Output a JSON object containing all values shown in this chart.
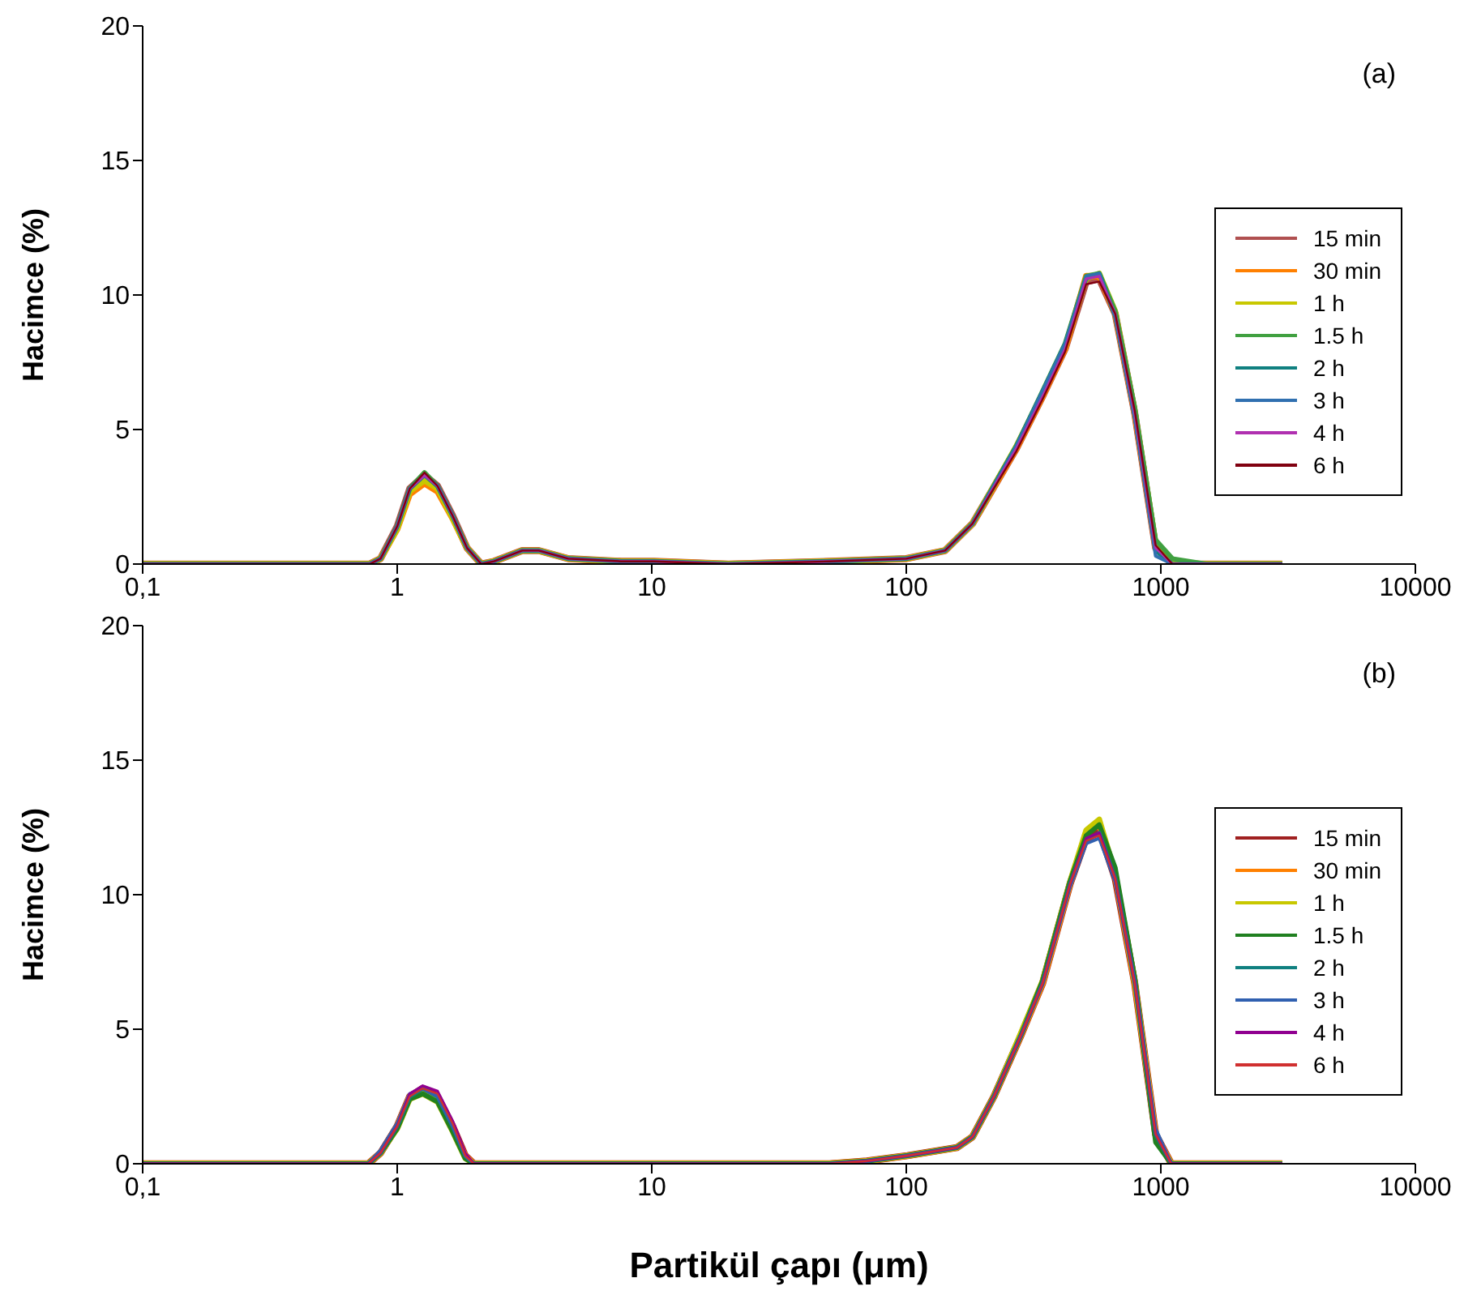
{
  "chart_data": [
    {
      "type": "line",
      "ylabel": "Hacimce (%)",
      "annotations": [
        "(a)"
      ],
      "log": "x",
      "grid": false,
      "legend": "right",
      "marker": "none",
      "line_style": "solid",
      "x": [
        0.1,
        0.78,
        0.86,
        1.0,
        1.12,
        1.28,
        1.44,
        1.65,
        1.88,
        2.14,
        2.4,
        3.1,
        3.6,
        4.7,
        7.6,
        10.2,
        20,
        50,
        100,
        142,
        182,
        271,
        342,
        421,
        509,
        573,
        662,
        790,
        954,
        1110,
        1500,
        3000
      ],
      "xlim": [
        0.1,
        10000
      ],
      "xticks": [
        {
          "value": 0.1,
          "label": "0,1"
        },
        1,
        10,
        100,
        1000,
        10000
      ],
      "ylim": [
        0,
        20
      ],
      "yticks": [
        0,
        5,
        10,
        15,
        20
      ],
      "series": [
        {
          "name": "15 min",
          "color": "#b05050",
          "values": [
            0,
            0,
            0.2,
            1.4,
            2.8,
            3.3,
            2.9,
            1.8,
            0.6,
            0,
            0.1,
            0.5,
            0.5,
            0.2,
            0.1,
            0.1,
            0,
            0.1,
            0.2,
            0.5,
            1.5,
            4.3,
            6.2,
            8,
            10.5,
            10.6,
            9.3,
            5.6,
            0.6,
            0,
            0,
            0
          ]
        },
        {
          "name": "30 min",
          "color": "#ff8000",
          "values": [
            0,
            0,
            0.2,
            1.3,
            2.6,
            3.0,
            2.7,
            1.7,
            0.6,
            0,
            0.1,
            0.5,
            0.5,
            0.2,
            0.1,
            0.1,
            0,
            0.1,
            0.2,
            0.5,
            1.5,
            4.3,
            6.2,
            8,
            10.7,
            10.7,
            9.3,
            5.6,
            0.6,
            0,
            0,
            0
          ]
        },
        {
          "name": "1 h",
          "color": "#c8c800",
          "values": [
            0,
            0,
            0.2,
            1.3,
            2.7,
            3.1,
            2.8,
            1.7,
            0.6,
            0,
            0.1,
            0.5,
            0.5,
            0.2,
            0.1,
            0.1,
            0,
            0.1,
            0.2,
            0.5,
            1.5,
            4.4,
            6.3,
            8.1,
            10.6,
            10.8,
            9.4,
            5.7,
            0.8,
            0.1,
            0,
            0
          ]
        },
        {
          "name": "1.5 h",
          "color": "#40a040",
          "values": [
            0,
            0,
            0.2,
            1.4,
            2.8,
            3.4,
            2.9,
            1.8,
            0.6,
            0,
            0.1,
            0.5,
            0.5,
            0.2,
            0.1,
            0.1,
            0,
            0.1,
            0.2,
            0.5,
            1.5,
            4.4,
            6.4,
            8.2,
            10.7,
            10.8,
            9.4,
            5.8,
            0.9,
            0.2,
            0,
            0
          ]
        },
        {
          "name": "2 h",
          "color": "#108080",
          "values": [
            0,
            0,
            0.2,
            1.4,
            2.8,
            3.3,
            2.9,
            1.8,
            0.6,
            0,
            0.1,
            0.5,
            0.5,
            0.2,
            0.1,
            0.1,
            0,
            0.1,
            0.2,
            0.5,
            1.5,
            4.4,
            6.4,
            8.2,
            10.6,
            10.8,
            9.2,
            5.5,
            0.5,
            0,
            0,
            0
          ]
        },
        {
          "name": "3 h",
          "color": "#3070b0",
          "values": [
            0,
            0,
            0.2,
            1.4,
            2.8,
            3.3,
            2.9,
            1.8,
            0.6,
            0,
            0.1,
            0.5,
            0.5,
            0.2,
            0.1,
            0.1,
            0,
            0.1,
            0.2,
            0.5,
            1.5,
            4.4,
            6.4,
            8.2,
            10.7,
            10.8,
            9.2,
            5.4,
            0.3,
            0,
            0,
            0
          ]
        },
        {
          "name": "4 h",
          "color": "#b030b0",
          "values": [
            0,
            0,
            0.2,
            1.4,
            2.8,
            3.3,
            2.9,
            1.8,
            0.6,
            0,
            0.1,
            0.5,
            0.5,
            0.2,
            0.1,
            0.1,
            0,
            0.1,
            0.2,
            0.5,
            1.5,
            4.3,
            6.2,
            8,
            10.6,
            10.7,
            9.3,
            5.6,
            0.6,
            0,
            0,
            0
          ]
        },
        {
          "name": "6 h",
          "color": "#800010",
          "values": [
            0,
            0,
            0.2,
            1.4,
            2.8,
            3.4,
            2.9,
            1.8,
            0.6,
            0,
            0.1,
            0.5,
            0.5,
            0.2,
            0.1,
            0.1,
            0,
            0.1,
            0.2,
            0.5,
            1.5,
            4.2,
            6.1,
            7.9,
            10.4,
            10.5,
            9.3,
            5.7,
            0.7,
            0,
            0,
            0
          ]
        }
      ]
    },
    {
      "type": "line",
      "xlabel": "Partikül çapı (μm)",
      "ylabel": "Hacimce (%)",
      "annotations": [
        "(b)"
      ],
      "log": "x",
      "grid": false,
      "legend": "right",
      "marker": "none",
      "line_style": "solid",
      "x": [
        0.1,
        0.77,
        0.86,
        1.0,
        1.12,
        1.26,
        1.44,
        1.65,
        1.85,
        2.0,
        10,
        50,
        70,
        101,
        158,
        182,
        221,
        283,
        343,
        440,
        509,
        573,
        662,
        790,
        954,
        1100,
        3000
      ],
      "xlim": [
        0.1,
        10000
      ],
      "xticks": [
        {
          "value": 0.1,
          "label": "0,1"
        },
        1,
        10,
        100,
        1000,
        10000
      ],
      "ylim": [
        0,
        20
      ],
      "yticks": [
        0,
        5,
        10,
        15,
        20
      ],
      "series": [
        {
          "name": "15 min",
          "color": "#a02020",
          "values": [
            0,
            0,
            0.4,
            1.4,
            2.5,
            2.8,
            2.5,
            1.4,
            0.3,
            0,
            0,
            0,
            0.1,
            0.3,
            0.6,
            1.0,
            2.5,
            4.8,
            6.7,
            10.4,
            12.1,
            12.4,
            10.6,
            6.7,
            1.1,
            0,
            0
          ]
        },
        {
          "name": "30 min",
          "color": "#ff8000",
          "values": [
            0,
            0,
            0.4,
            1.4,
            2.5,
            2.7,
            2.4,
            1.3,
            0.3,
            0,
            0,
            0,
            0.1,
            0.3,
            0.6,
            1.0,
            2.5,
            4.8,
            6.7,
            10.4,
            12.3,
            12.6,
            10.7,
            6.7,
            1.1,
            0,
            0
          ]
        },
        {
          "name": "1 h",
          "color": "#c8c800",
          "values": [
            0,
            0,
            0.4,
            1.3,
            2.4,
            2.6,
            2.3,
            1.2,
            0.2,
            0,
            0,
            0,
            0.1,
            0.3,
            0.6,
            1.0,
            2.5,
            4.9,
            6.8,
            10.5,
            12.4,
            12.8,
            10.8,
            6.8,
            1.0,
            0,
            0
          ]
        },
        {
          "name": "1.5 h",
          "color": "#208020",
          "values": [
            0,
            0,
            0.4,
            1.3,
            2.4,
            2.6,
            2.3,
            1.2,
            0.2,
            0,
            0,
            0,
            0.1,
            0.3,
            0.6,
            1.0,
            2.5,
            4.8,
            6.8,
            10.5,
            12.2,
            12.6,
            11.0,
            6.9,
            0.8,
            0,
            0
          ]
        },
        {
          "name": "2 h",
          "color": "#108080",
          "values": [
            0,
            0,
            0.4,
            1.4,
            2.5,
            2.8,
            2.5,
            1.4,
            0.3,
            0,
            0,
            0,
            0.1,
            0.3,
            0.6,
            1.0,
            2.5,
            4.8,
            6.7,
            10.4,
            12.0,
            12.3,
            10.6,
            6.7,
            1.1,
            0,
            0
          ]
        },
        {
          "name": "3 h",
          "color": "#3060b0",
          "values": [
            0,
            0,
            0.5,
            1.5,
            2.6,
            2.8,
            2.5,
            1.4,
            0.3,
            0,
            0,
            0,
            0.1,
            0.3,
            0.6,
            1.0,
            2.5,
            4.8,
            6.7,
            10.3,
            11.9,
            12.1,
            10.5,
            6.8,
            1.3,
            0,
            0
          ]
        },
        {
          "name": "4 h",
          "color": "#900090",
          "values": [
            0,
            0,
            0.4,
            1.4,
            2.6,
            2.9,
            2.7,
            1.6,
            0.4,
            0,
            0,
            0,
            0.1,
            0.3,
            0.6,
            1.0,
            2.5,
            4.8,
            6.7,
            10.4,
            12.1,
            12.3,
            10.6,
            6.7,
            1.1,
            0,
            0
          ]
        },
        {
          "name": "6 h",
          "color": "#d03030",
          "values": [
            0,
            0,
            0.4,
            1.4,
            2.5,
            2.8,
            2.6,
            1.5,
            0.3,
            0,
            0,
            0,
            0.1,
            0.3,
            0.6,
            1.0,
            2.5,
            4.8,
            6.7,
            10.4,
            12.0,
            12.2,
            10.6,
            6.7,
            1.1,
            0,
            0
          ]
        }
      ]
    }
  ]
}
